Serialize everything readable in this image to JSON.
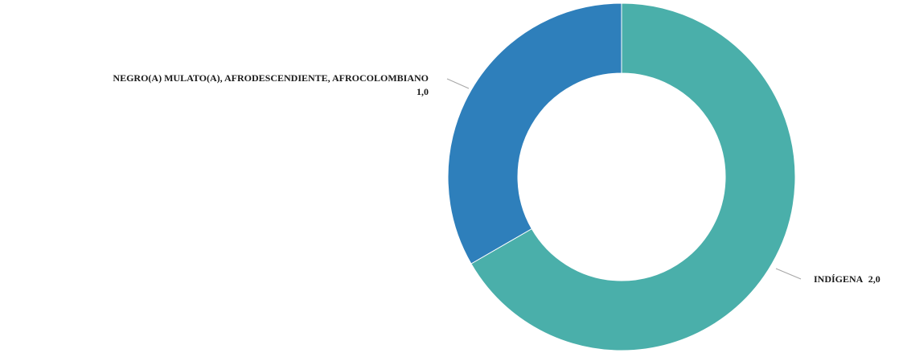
{
  "chart_data": {
    "type": "donut",
    "title": "",
    "series": [
      {
        "values": [
          {
            "category": "INDÍGENA",
            "value": 2.0,
            "display": "2,0",
            "color": "#4AAFAA"
          },
          {
            "category": "NEGRO(A) MULATO(A), AFRODESCENDIENTE, AFROCOLOMBIANO",
            "value": 1.0,
            "display": "1,0",
            "color": "#2E7FBB"
          }
        ]
      }
    ],
    "legend": "none",
    "data_labels": "outside with leader lines"
  }
}
